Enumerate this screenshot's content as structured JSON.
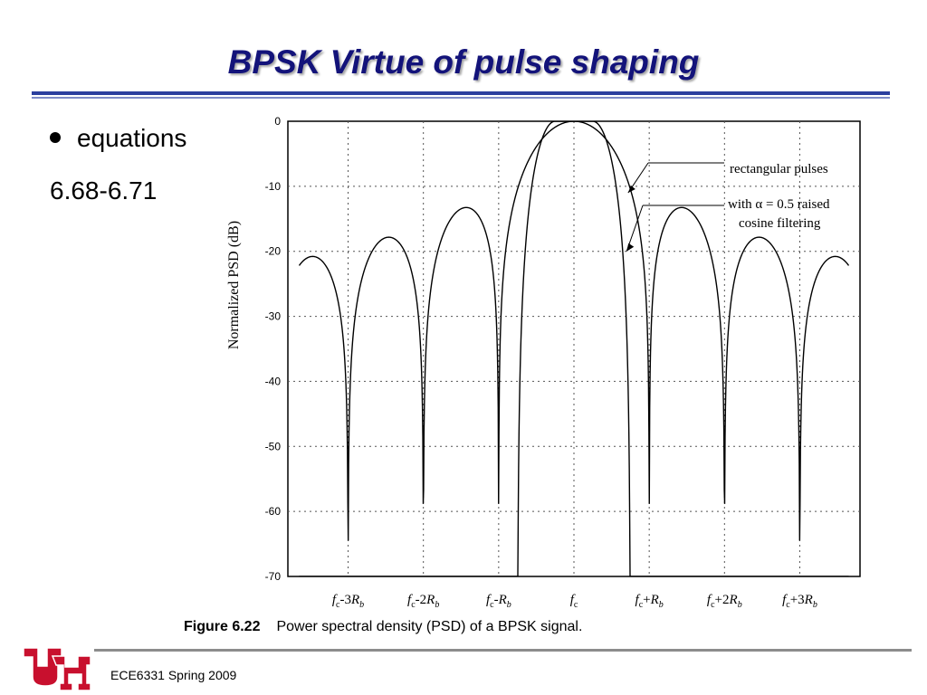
{
  "slide": {
    "title": "BPSK Virtue of pulse shaping",
    "bullet": "equations",
    "subtext": "6.68-6.71",
    "caption_label": "Figure 6.22",
    "caption_text": "Power spectral density (PSD) of a BPSK signal.",
    "footer": "ECE6331 Spring 2009",
    "logo_alt": "UH"
  },
  "colors": {
    "title": "#13137a",
    "rule": "#2b3f9e",
    "logo_red": "#c8102e"
  },
  "chart_data": {
    "type": "line",
    "ylabel": "Normalized PSD (dB)",
    "ylim": [
      -70,
      0
    ],
    "yticks": [
      0,
      -10,
      -20,
      -30,
      -40,
      -50,
      -60,
      -70
    ],
    "xlim": [
      -3.8,
      3.8
    ],
    "xtick_positions": [
      -3,
      -2,
      -1,
      0,
      1,
      2,
      3
    ],
    "xtick_labels": [
      "fc-3Rb",
      "fc-2Rb",
      "fc-Rb",
      "fc",
      "fc+Rb",
      "fc+2Rb",
      "fc+3Rb"
    ],
    "grid": true,
    "annotations": [
      {
        "text": "rectangular pulses"
      },
      {
        "text": "with α = 0.5 raised"
      },
      {
        "text": "cosine filtering"
      }
    ],
    "series": [
      {
        "name": "rectangular pulses",
        "function": "10*log10(sinc^2((f-fc)/Rb))"
      },
      {
        "name": "with α = 0.5 raised cosine filtering",
        "function": "raised cosine spectrum, α = 0.5"
      }
    ]
  }
}
